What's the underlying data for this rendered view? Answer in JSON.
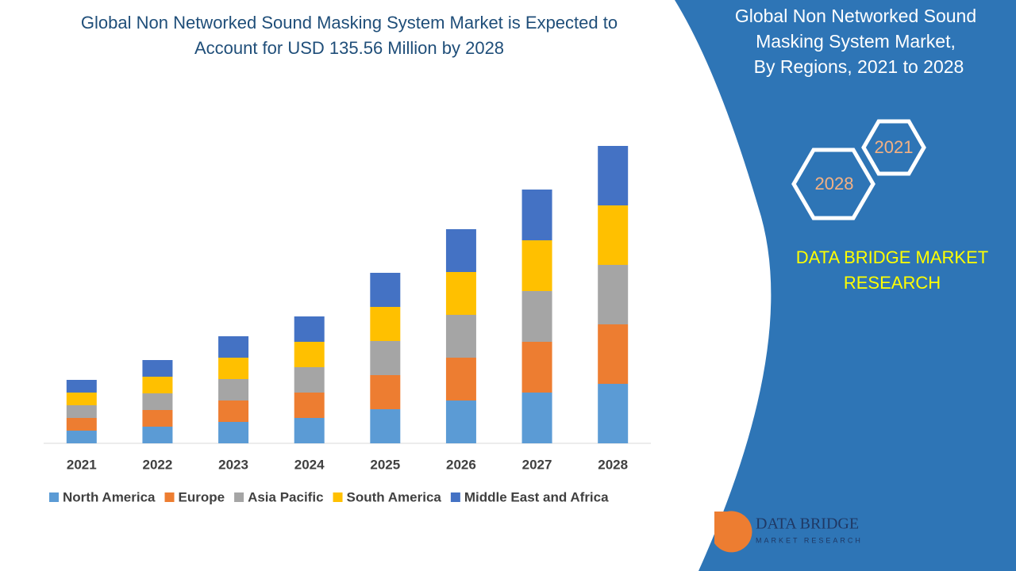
{
  "chart_data": {
    "type": "stacked-bar",
    "title": "Global Non Networked Sound Masking System Market is Expected to Account for USD 135.56 Million by 2028",
    "categories": [
      "2021",
      "2022",
      "2023",
      "2024",
      "2025",
      "2026",
      "2027",
      "2028"
    ],
    "series": [
      {
        "name": "North America",
        "color": "#5b9bd5",
        "values": [
          16,
          21,
          27,
          32,
          43,
          54,
          64,
          75
        ]
      },
      {
        "name": "Europe",
        "color": "#ed7d31",
        "values": [
          16,
          21,
          27,
          32,
          43,
          54,
          64,
          75
        ]
      },
      {
        "name": "Asia Pacific",
        "color": "#a5a5a5",
        "values": [
          16,
          21,
          27,
          32,
          43,
          54,
          64,
          75
        ]
      },
      {
        "name": "South America",
        "color": "#ffc000",
        "values": [
          16,
          21,
          27,
          32,
          43,
          54,
          64,
          75
        ]
      },
      {
        "name": "Middle East and Africa",
        "color": "#4472c4",
        "values": [
          16,
          21,
          27,
          32,
          43,
          54,
          64,
          75
        ]
      }
    ],
    "legend": "bottom"
  },
  "side_panel": {
    "title_lines": [
      "Global Non Networked Sound",
      "Masking System Market,",
      "By Regions, 2021 to 2028"
    ],
    "hex_start": "2021",
    "hex_end": "2028",
    "brand_lines": [
      "DATA BRIDGE MARKET",
      "RESEARCH"
    ],
    "logo_name": "DATA BRIDGE",
    "logo_tagline": "MARKET RESEARCH"
  }
}
